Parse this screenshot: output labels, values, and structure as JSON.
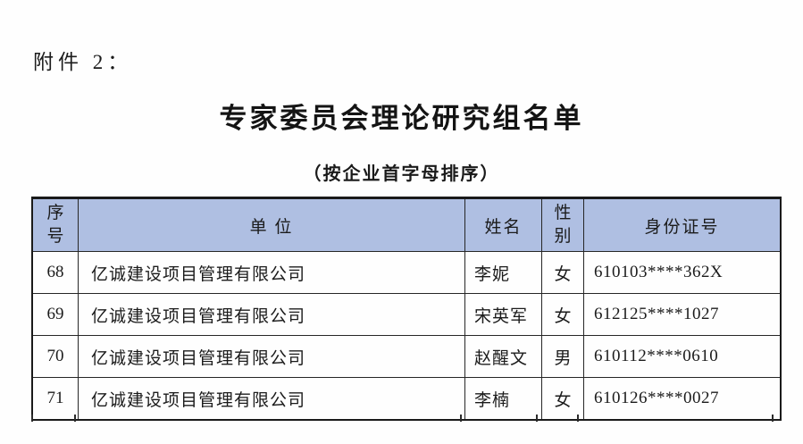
{
  "page": {
    "attachment_label": "附件 2：",
    "title": "专家委员会理论研究组名单",
    "subtitle": "（按企业首字母排序）"
  },
  "table": {
    "header_bg": "#afbfe2",
    "border_color": "#262626",
    "columns": [
      "序号",
      "单 位",
      "姓名",
      "性别",
      "身份证号"
    ],
    "rows": [
      {
        "no": "68",
        "company": "亿诚建设项目管理有限公司",
        "name": "李妮",
        "gender": "女",
        "id": "610103****362X"
      },
      {
        "no": "69",
        "company": "亿诚建设项目管理有限公司",
        "name": "宋英军",
        "gender": "女",
        "id": "612125****1027"
      },
      {
        "no": "70",
        "company": "亿诚建设项目管理有限公司",
        "name": "赵醒文",
        "gender": "男",
        "id": "610112****0610"
      },
      {
        "no": "71",
        "company": "亿诚建设项目管理有限公司",
        "name": "李楠",
        "gender": "女",
        "id": "610126****0027"
      }
    ]
  }
}
